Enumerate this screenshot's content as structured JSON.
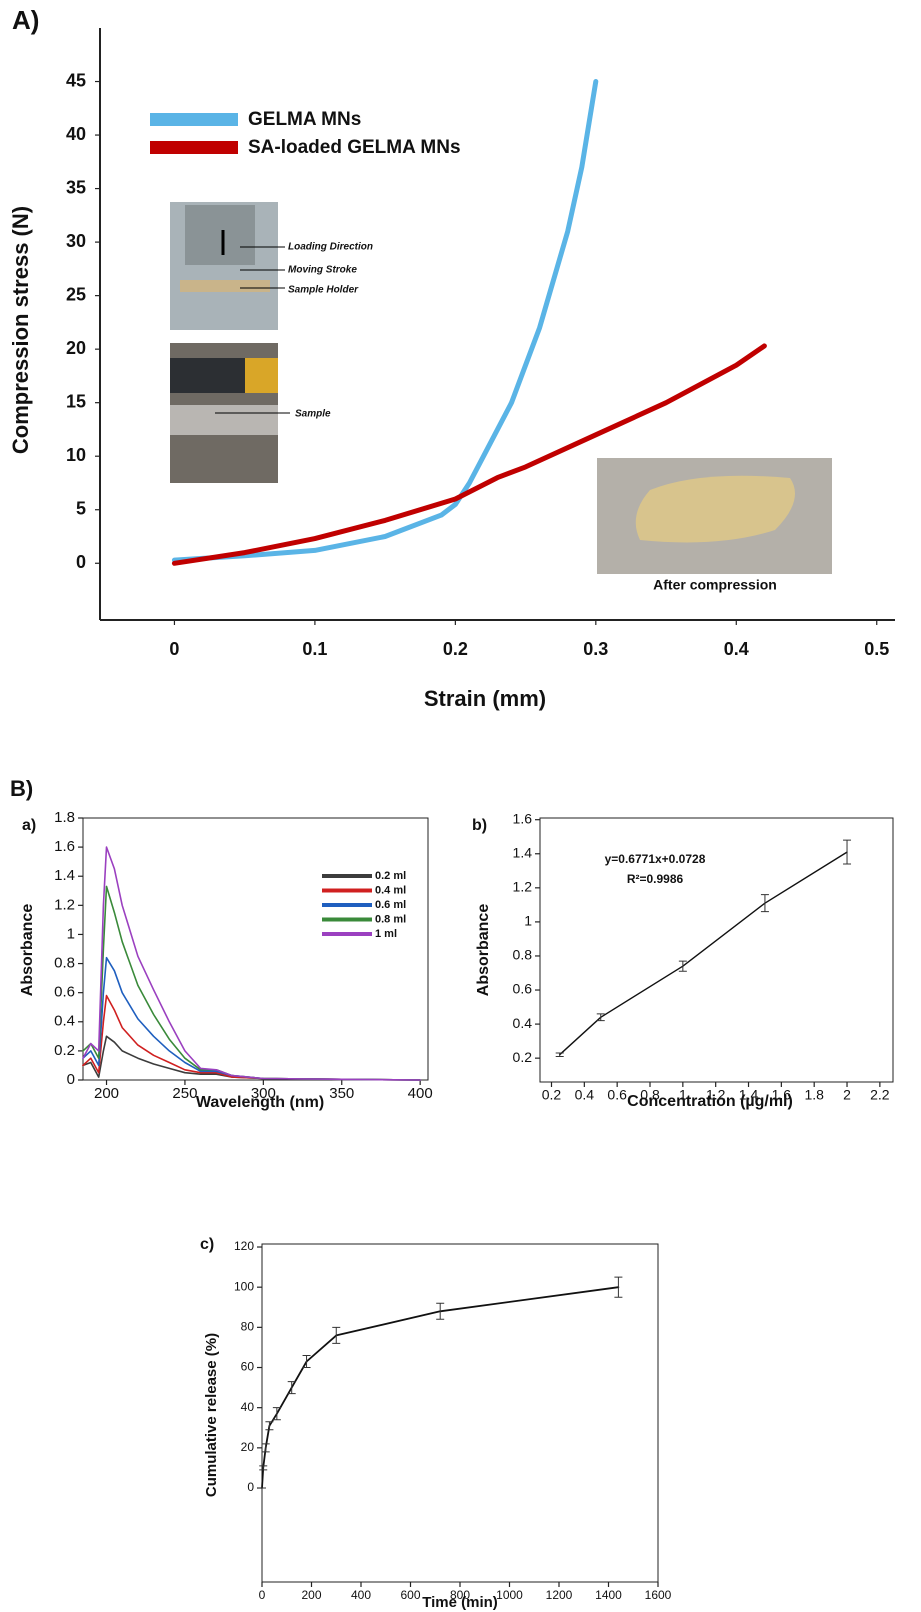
{
  "section_label": "B)",
  "chart_data": [
    {
      "type": "line",
      "panel": "A)",
      "x_label": "Strain (mm)",
      "y_label": "Compression stress (N)",
      "xlim": [
        -0.053,
        0.513
      ],
      "ylim": [
        -5.3,
        50
      ],
      "xticks": [
        0,
        0.1,
        0.2,
        0.3,
        0.4,
        0.5
      ],
      "yticks": [
        0,
        5,
        10,
        15,
        20,
        25,
        30,
        35,
        40,
        45
      ],
      "series": [
        {
          "name": "GELMA MNs",
          "color": "#5ab4e6",
          "x": [
            0,
            0.05,
            0.1,
            0.15,
            0.19,
            0.2,
            0.21,
            0.22,
            0.24,
            0.26,
            0.28,
            0.29,
            0.3
          ],
          "values": [
            0.3,
            0.7,
            1.2,
            2.5,
            4.5,
            5.5,
            7.5,
            10,
            15,
            22,
            31,
            37,
            45
          ]
        },
        {
          "name": "SA-loaded GELMA MNs",
          "color": "#c00000",
          "x": [
            0,
            0.05,
            0.1,
            0.15,
            0.2,
            0.23,
            0.25,
            0.3,
            0.35,
            0.4,
            0.42
          ],
          "values": [
            0,
            1,
            2.3,
            4,
            6,
            8,
            9,
            12,
            15,
            18.5,
            20.3
          ]
        }
      ],
      "annotations": [
        "Loading Direction",
        "Moving Stroke",
        "Sample Holder",
        "Sample",
        "After compression"
      ]
    },
    {
      "type": "line",
      "panel": "a)",
      "x_label": "Wavelength (nm)",
      "y_label": "Absorbance",
      "xlim": [
        185,
        405
      ],
      "ylim": [
        0,
        1.8
      ],
      "xticks": [
        200,
        250,
        300,
        350,
        400
      ],
      "yticks": [
        0,
        0.2,
        0.4,
        0.6,
        0.8,
        1,
        1.2,
        1.4,
        1.6,
        1.8
      ],
      "x": [
        185,
        190,
        195,
        198,
        200,
        205,
        210,
        220,
        230,
        240,
        250,
        260,
        270,
        280,
        300,
        350,
        400
      ],
      "series": [
        {
          "name": "0.2 ml",
          "color": "#3c3c3c",
          "values": [
            0.1,
            0.12,
            0.02,
            0.2,
            0.3,
            0.26,
            0.2,
            0.15,
            0.11,
            0.08,
            0.05,
            0.04,
            0.04,
            0.02,
            0.01,
            0.005,
            0
          ]
        },
        {
          "name": "0.4 ml",
          "color": "#d02020",
          "values": [
            0.1,
            0.15,
            0.05,
            0.4,
            0.58,
            0.48,
            0.36,
            0.24,
            0.17,
            0.12,
            0.07,
            0.05,
            0.05,
            0.02,
            0.01,
            0.005,
            0
          ]
        },
        {
          "name": "0.6 ml",
          "color": "#1f5fbf",
          "values": [
            0.15,
            0.2,
            0.1,
            0.6,
            0.84,
            0.75,
            0.6,
            0.42,
            0.3,
            0.2,
            0.12,
            0.06,
            0.06,
            0.03,
            0.01,
            0.005,
            0
          ]
        },
        {
          "name": "0.8 ml",
          "color": "#3a8a3a",
          "values": [
            0.2,
            0.25,
            0.15,
            0.9,
            1.33,
            1.15,
            0.95,
            0.65,
            0.45,
            0.28,
            0.15,
            0.07,
            0.07,
            0.03,
            0.01,
            0.005,
            0
          ]
        },
        {
          "name": "1 ml",
          "color": "#9b40c0",
          "values": [
            0.15,
            0.25,
            0.2,
            1.2,
            1.6,
            1.45,
            1.2,
            0.85,
            0.62,
            0.4,
            0.2,
            0.08,
            0.07,
            0.03,
            0.01,
            0.005,
            0
          ]
        }
      ]
    },
    {
      "type": "line",
      "panel": "b)",
      "x_label": "Concentration (µg/ml)",
      "y_label": "Absorbance",
      "xlim": [
        0.13,
        2.28
      ],
      "ylim": [
        0.06,
        1.61
      ],
      "xticks": [
        0.2,
        0.4,
        0.6,
        0.8,
        1,
        1.2,
        1.4,
        1.6,
        1.8,
        2,
        2.2
      ],
      "yticks": [
        0.2,
        0.4,
        0.6,
        0.8,
        1,
        1.2,
        1.4,
        1.6
      ],
      "x": [
        0.25,
        0.5,
        1,
        1.5,
        2
      ],
      "values": [
        0.22,
        0.44,
        0.74,
        1.11,
        1.41
      ],
      "errors": [
        0.01,
        0.02,
        0.03,
        0.05,
        0.07
      ],
      "color": "#111111",
      "annotations": [
        "y=0.6771x+0.0728",
        "R²=0.9986"
      ]
    },
    {
      "type": "line",
      "panel": "c)",
      "x_label": "Time (min)",
      "y_label": "Cumulative release (%)",
      "xlim": [
        0,
        1600
      ],
      "ylim": [
        -46.8,
        121.5
      ],
      "xticks": [
        0,
        200,
        400,
        600,
        800,
        1000,
        1200,
        1400,
        1600
      ],
      "yticks": [
        0,
        20,
        40,
        60,
        80,
        100,
        120
      ],
      "x": [
        0,
        5,
        15,
        30,
        60,
        120,
        180,
        300,
        720,
        1440
      ],
      "values": [
        0,
        10,
        20,
        31,
        37,
        50,
        63,
        76,
        88,
        100
      ],
      "errors": [
        0,
        1,
        2,
        2,
        3,
        3,
        3,
        4,
        4,
        5
      ],
      "color": "#111111"
    }
  ]
}
